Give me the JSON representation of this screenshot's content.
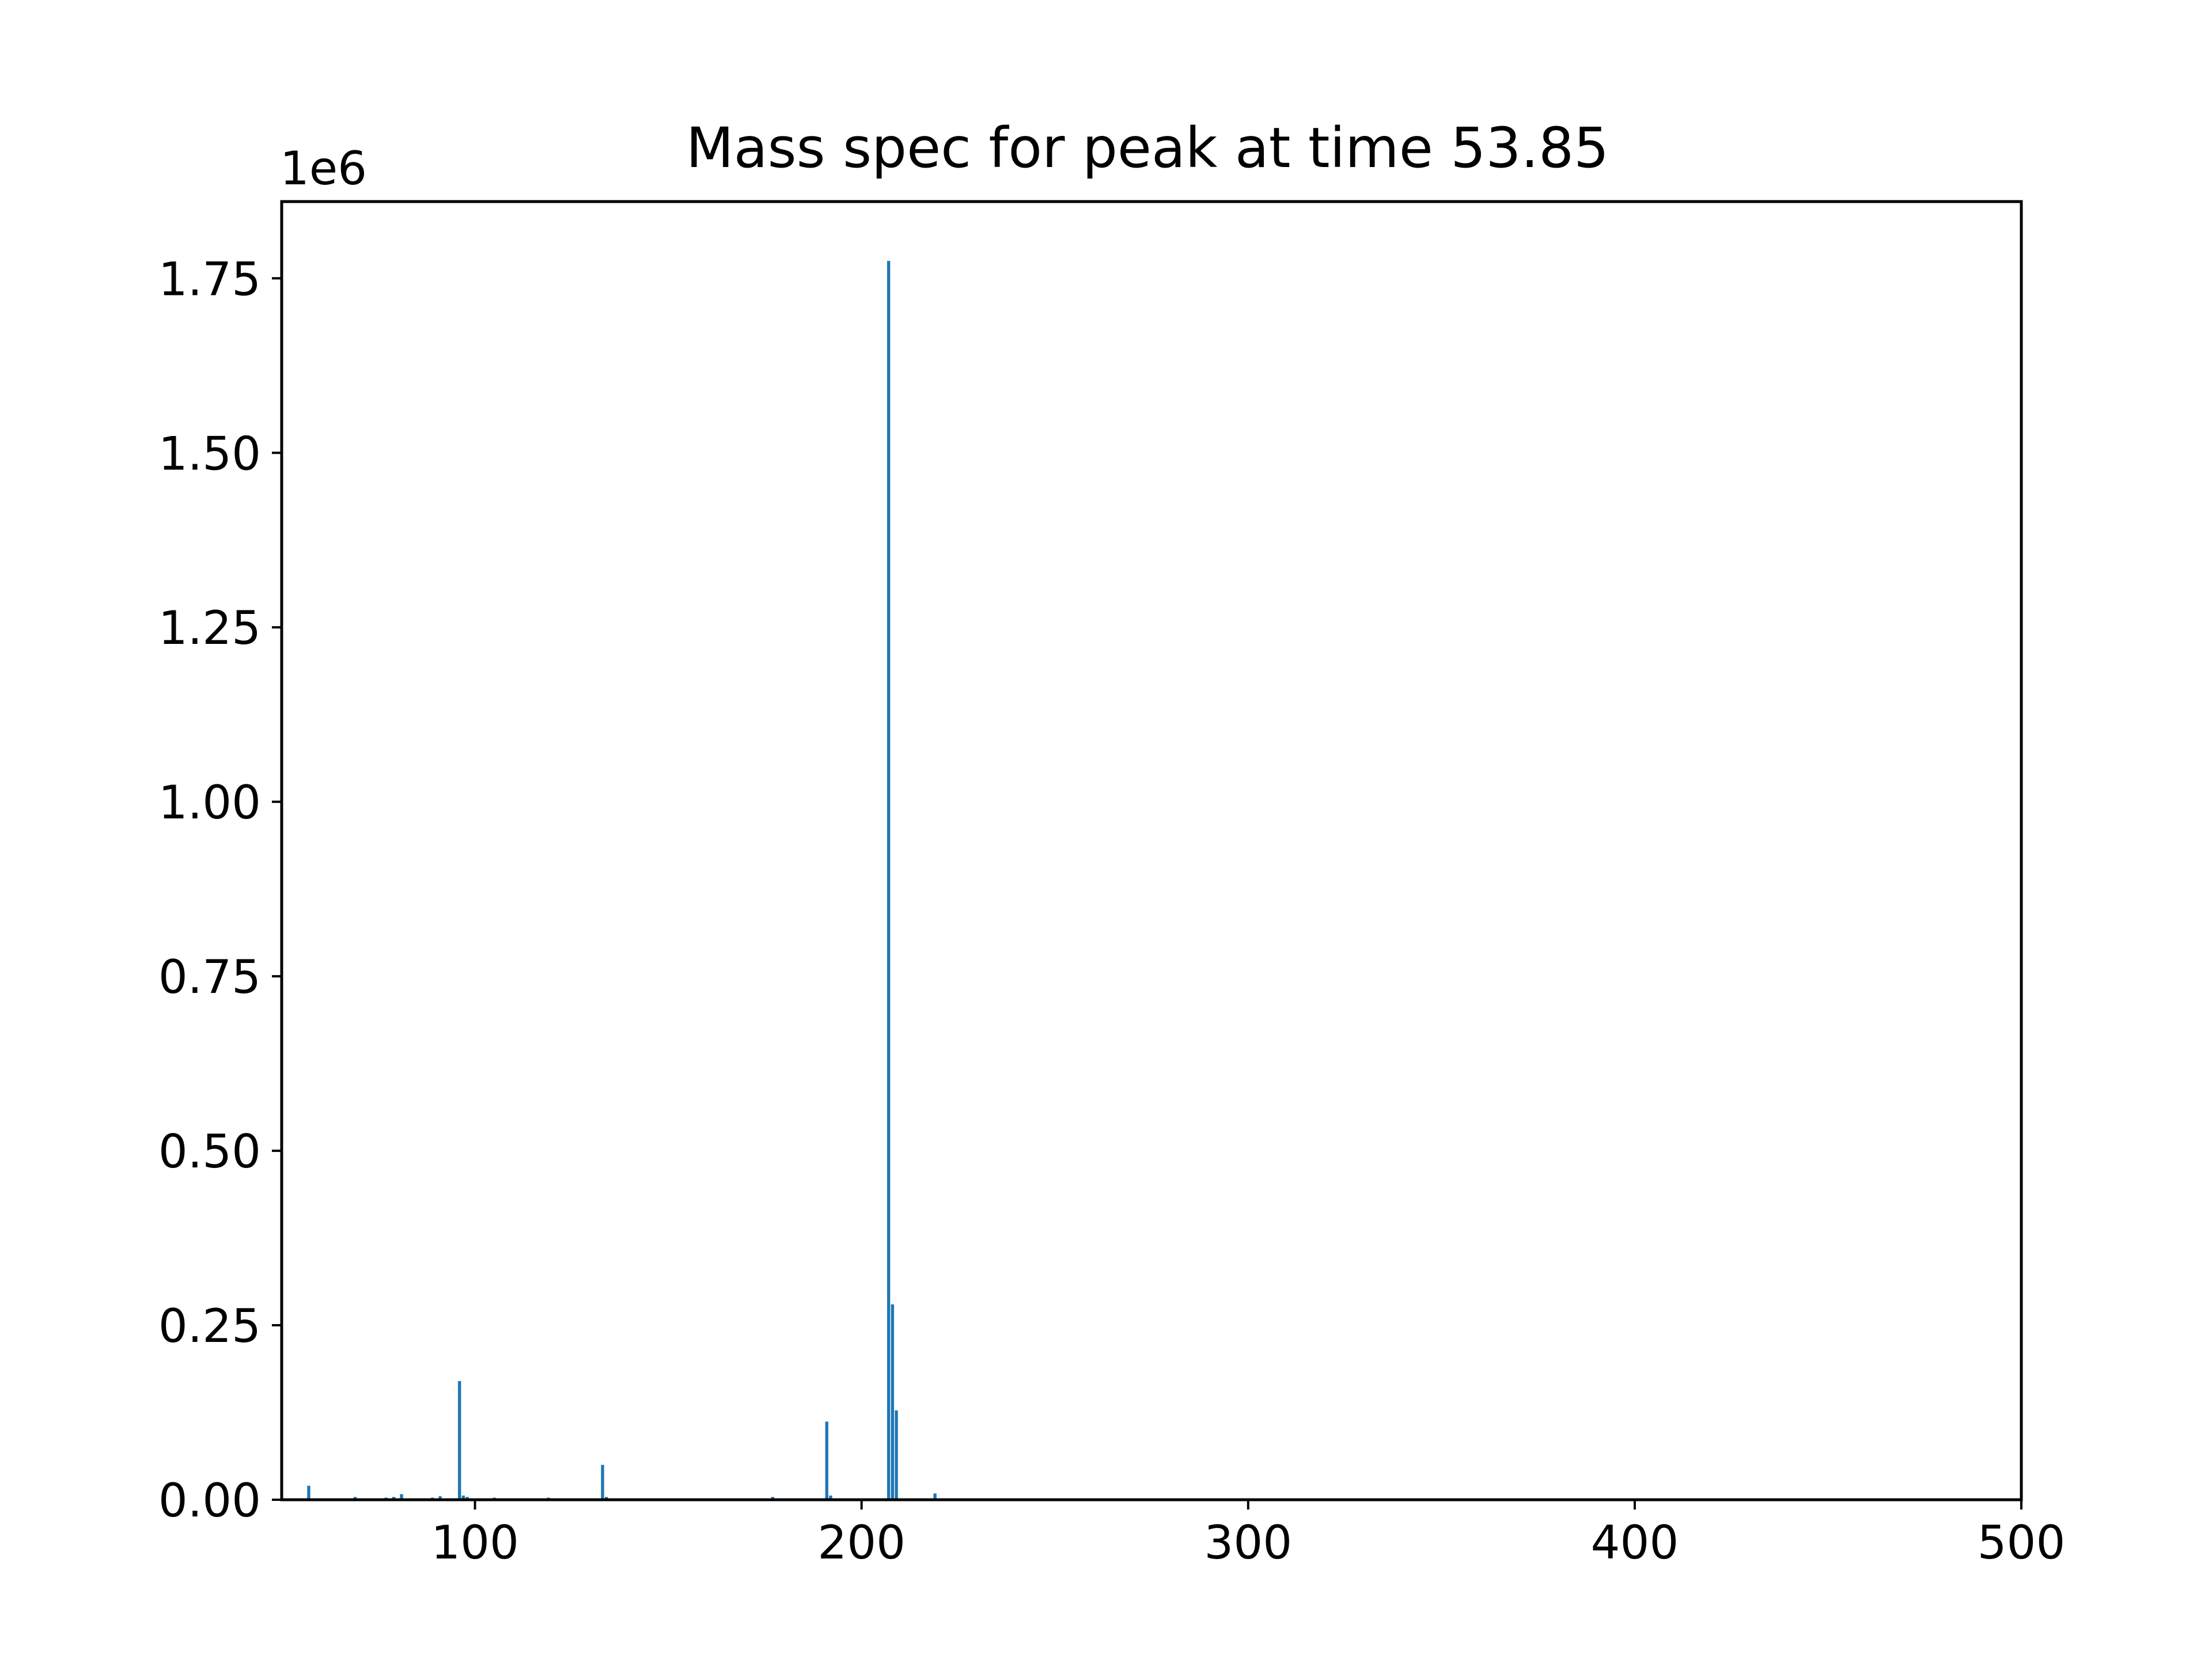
{
  "chart_data": {
    "type": "bar",
    "title": "Mass spec for peak at time 53.85",
    "xlabel": "",
    "ylabel": "",
    "y_offset_label": "1e6",
    "xlim": [
      50,
      500
    ],
    "ylim": [
      0,
      1.86
    ],
    "y_scale_factor": 1000000,
    "x_ticks": [
      100,
      200,
      300,
      400,
      500
    ],
    "x_tick_labels": [
      "100",
      "200",
      "300",
      "400",
      "500"
    ],
    "y_ticks": [
      0,
      0.25,
      0.5,
      0.75,
      1.0,
      1.25,
      1.5,
      1.75
    ],
    "y_tick_labels": [
      "0.00",
      "0.25",
      "0.50",
      "0.75",
      "1.00",
      "1.25",
      "1.50",
      "1.75"
    ],
    "grid": false,
    "legend": false,
    "bar_color": "#1f77b4",
    "series": [
      {
        "x": [
          57,
          69,
          77,
          79,
          81,
          89,
          91,
          96,
          97,
          98,
          105,
          119,
          133,
          134,
          147,
          177,
          191,
          192,
          207,
          208,
          209,
          219
        ],
        "values": [
          0.02,
          0.004,
          0.003,
          0.004,
          0.008,
          0.003,
          0.005,
          0.17,
          0.006,
          0.004,
          0.003,
          0.003,
          0.05,
          0.004,
          0.002,
          0.004,
          0.112,
          0.006,
          1.775,
          0.28,
          0.128,
          0.009
        ]
      }
    ]
  }
}
